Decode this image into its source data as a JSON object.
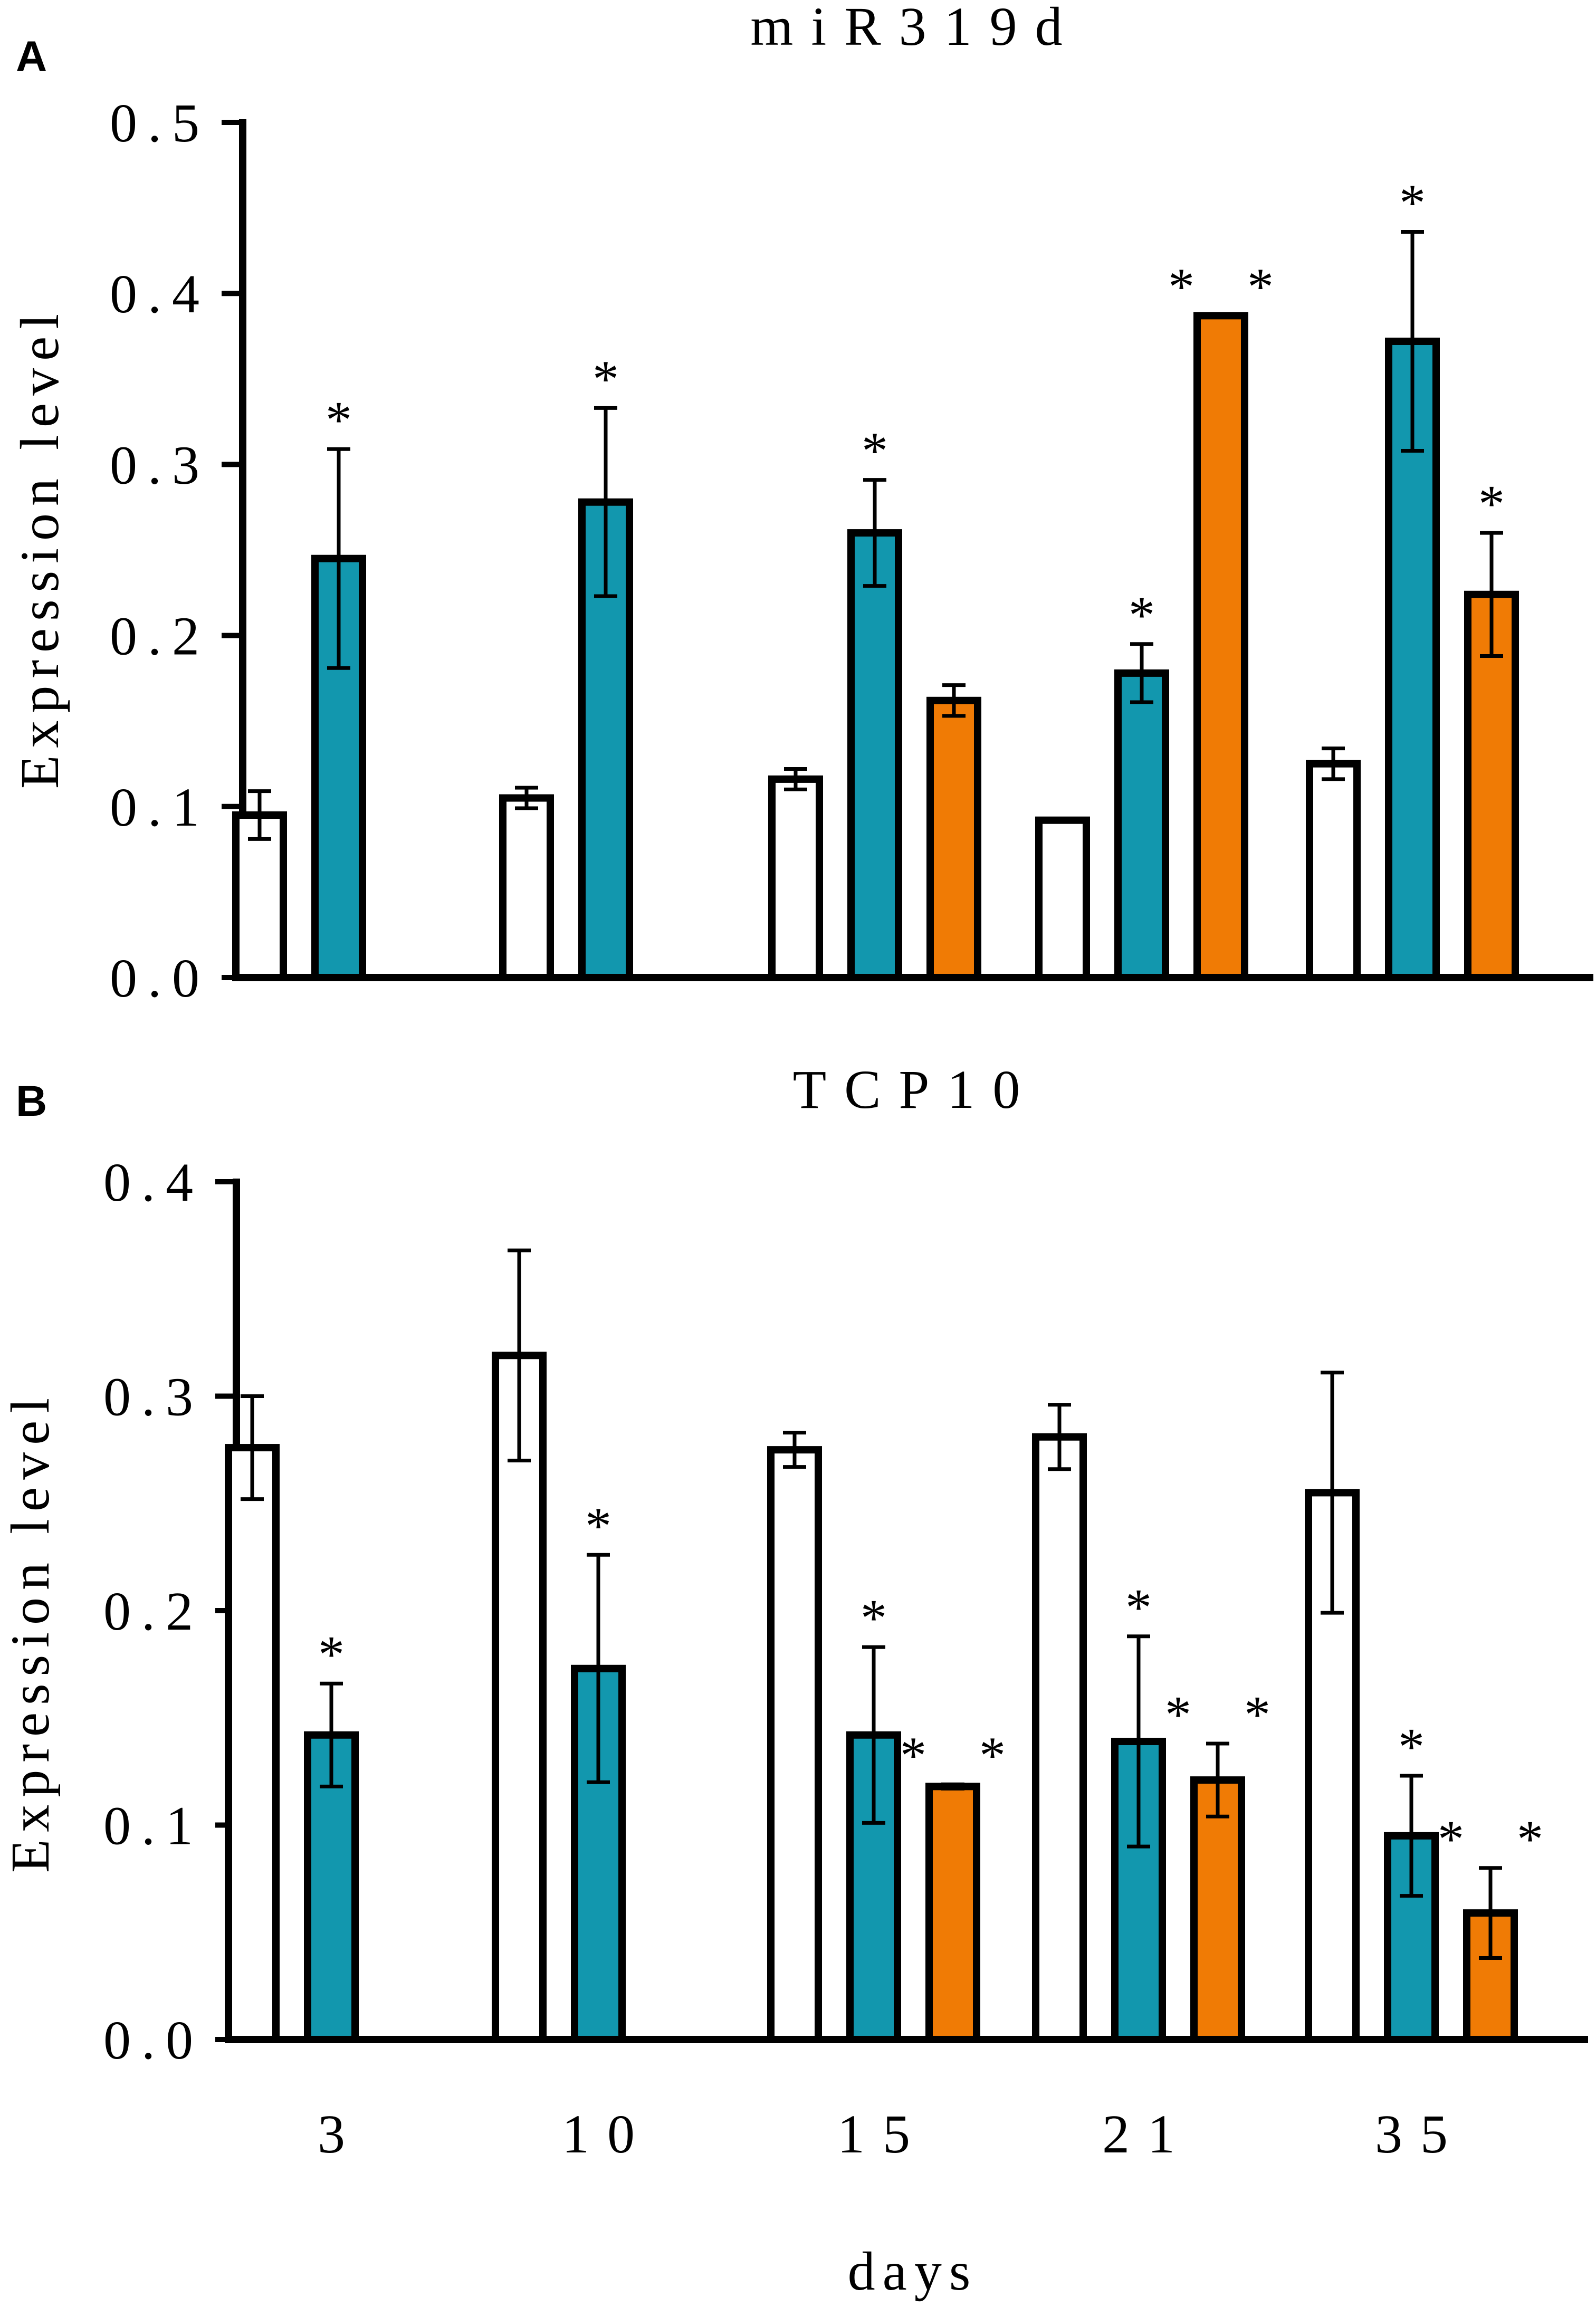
{
  "colors": {
    "control": "#ffffff",
    "treatment1": "#1297AE",
    "treatment2": "#F07B05",
    "axis": "#000000"
  },
  "chart_data": [
    {
      "panel": "A",
      "type": "bar",
      "title": "miR319d",
      "ylabel": "Expression level",
      "xlabel": "",
      "ylim": [
        0,
        0.5
      ],
      "yticks": [
        0.0,
        0.1,
        0.2,
        0.3,
        0.4,
        0.5
      ],
      "ytick_labels": [
        "0.0",
        "0.1",
        "0.2",
        "0.3",
        "0.4",
        "0.5"
      ],
      "categories": [
        "3",
        "10",
        "15",
        "21",
        "35"
      ],
      "show_category_labels": false,
      "series": [
        {
          "color_key": "control",
          "values": [
            0.095,
            0.105,
            0.116,
            0.092,
            0.125
          ],
          "errors": [
            0.014,
            0.006,
            0.006,
            0.0,
            0.009
          ],
          "significance": [
            "",
            "",
            "",
            "",
            ""
          ]
        },
        {
          "color_key": "treatment1",
          "values": [
            0.245,
            0.278,
            0.26,
            0.178,
            0.372
          ],
          "errors": [
            0.064,
            0.055,
            0.031,
            0.017,
            0.064
          ],
          "significance": [
            "*",
            "*",
            "*",
            "*",
            "*"
          ]
        },
        {
          "color_key": "treatment2",
          "values": [
            null,
            null,
            0.162,
            0.387,
            0.224
          ],
          "errors": [
            null,
            null,
            0.009,
            0.0,
            0.036
          ],
          "significance": [
            "",
            "",
            "",
            "* *",
            "*"
          ]
        }
      ]
    },
    {
      "panel": "B",
      "type": "bar",
      "title": "TCP10",
      "ylabel": "Expression level",
      "xlabel": "days",
      "ylim": [
        0,
        0.4
      ],
      "yticks": [
        0.0,
        0.1,
        0.2,
        0.3,
        0.4
      ],
      "ytick_labels": [
        "0.0",
        "0.1",
        "0.2",
        "0.3",
        "0.4"
      ],
      "categories": [
        "3",
        "10",
        "15",
        "21",
        "35"
      ],
      "show_category_labels": true,
      "series": [
        {
          "color_key": "control",
          "values": [
            0.276,
            0.319,
            0.275,
            0.281,
            0.255
          ],
          "errors": [
            0.024,
            0.049,
            0.008,
            0.015,
            0.056
          ],
          "significance": [
            "",
            "",
            "",
            "",
            ""
          ]
        },
        {
          "color_key": "treatment1",
          "values": [
            0.142,
            0.173,
            0.142,
            0.139,
            0.095
          ],
          "errors": [
            0.024,
            0.053,
            0.041,
            0.049,
            0.028
          ],
          "significance": [
            "*",
            "*",
            "*",
            "*",
            "*"
          ]
        },
        {
          "color_key": "treatment2",
          "values": [
            null,
            null,
            0.118,
            0.121,
            0.059
          ],
          "errors": [
            null,
            null,
            0.001,
            0.017,
            0.021
          ],
          "significance": [
            "",
            "",
            "* *",
            "* *",
            "* *"
          ]
        }
      ]
    }
  ]
}
